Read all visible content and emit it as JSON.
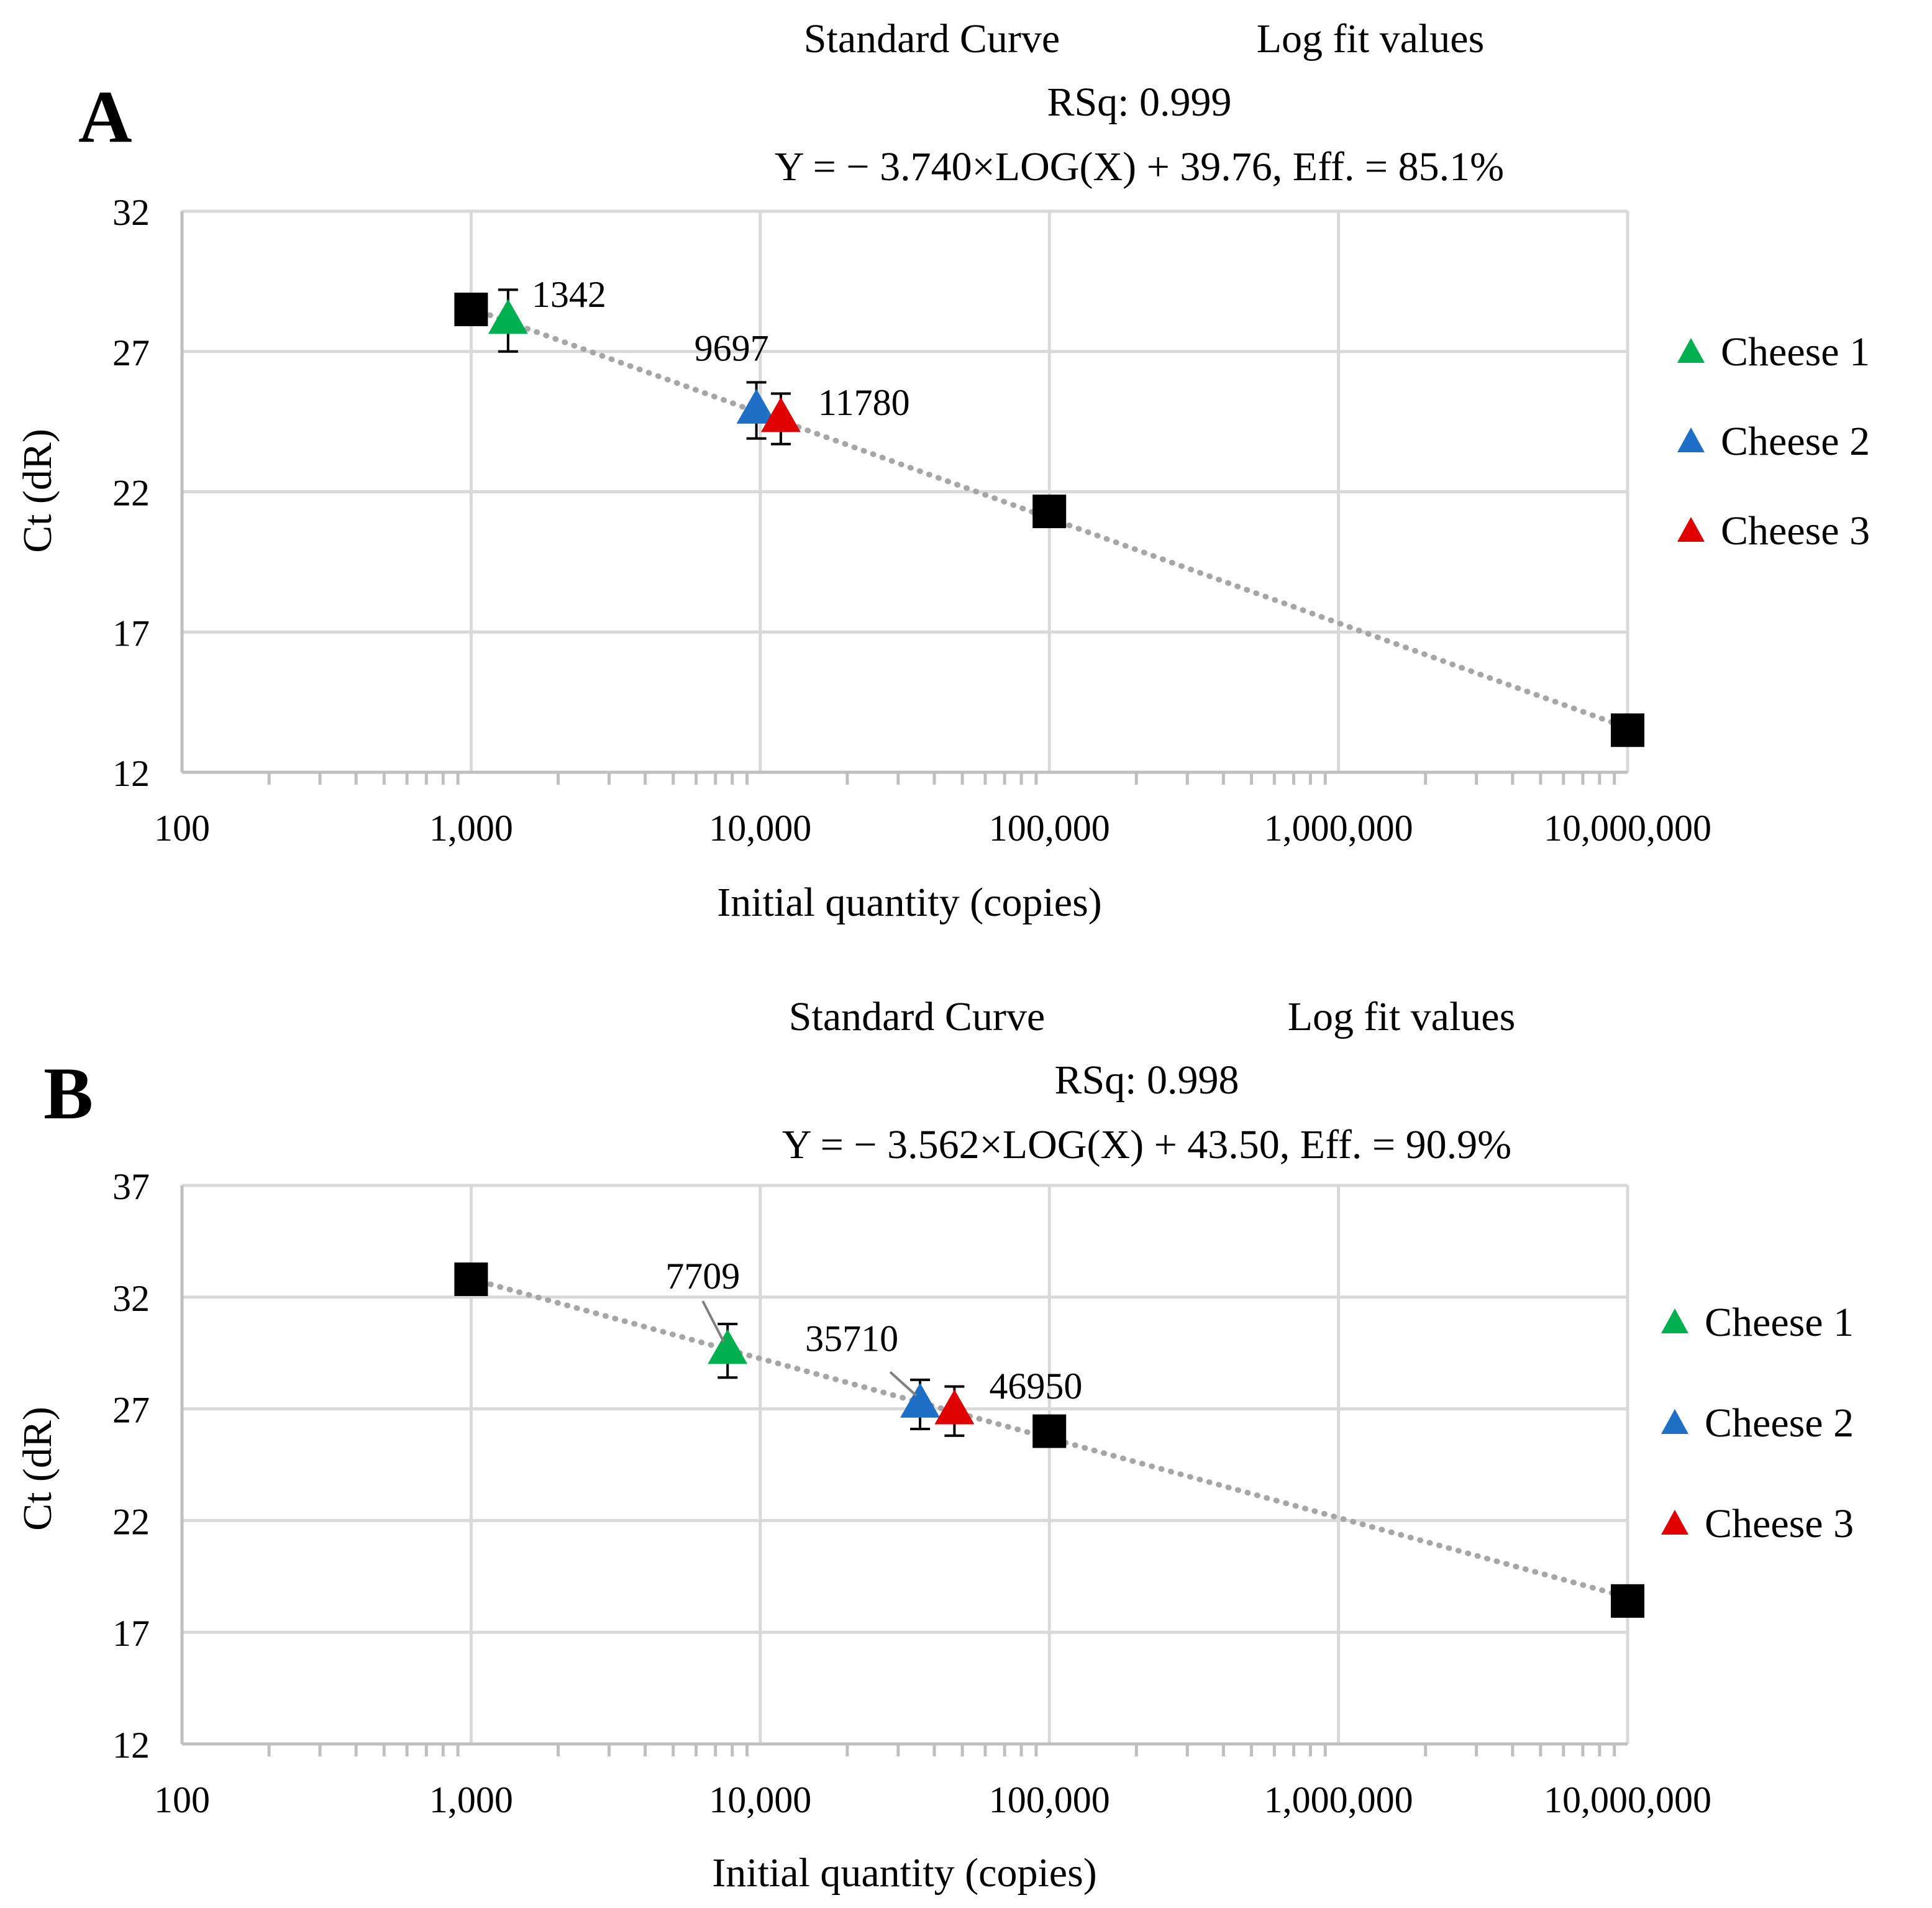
{
  "chart_data": [
    {
      "type": "scatter",
      "panel_label": "A",
      "header": {
        "standard_curve": "Standard Curve",
        "log_fit": "Log fit values",
        "rsq": "RSq: 0.999",
        "equation": "Y = − 3.740×LOG(X) + 39.76, Eff. = 85.1%"
      },
      "xlabel": "Initial quantity (copies)",
      "ylabel": "Ct (dR)",
      "x_scale": "log",
      "xlim": [
        100,
        10000000
      ],
      "x_ticks": [
        100,
        1000,
        10000,
        100000,
        1000000,
        10000000
      ],
      "x_tick_labels": [
        "100",
        "1,000",
        "10,000",
        "100,000",
        "1,000,000",
        "10,000,000"
      ],
      "ylim": [
        12,
        32
      ],
      "y_ticks": [
        12,
        17,
        22,
        27,
        32
      ],
      "y_tick_labels": [
        "12",
        "17",
        "22",
        "27",
        "32"
      ],
      "grid": true,
      "fit": {
        "slope": -3.74,
        "intercept": 39.76
      },
      "standards": [
        {
          "x": 1000,
          "y": 28.5
        },
        {
          "x": 100000,
          "y": 21.3
        },
        {
          "x": 10000000,
          "y": 13.5
        }
      ],
      "samples": [
        {
          "name": "Cheese 1",
          "color": "#00b050",
          "x": 1342,
          "y": 28.1,
          "err": 1.1,
          "label": "1342"
        },
        {
          "name": "Cheese 2",
          "color": "#1f6fc7",
          "x": 9697,
          "y": 24.9,
          "err": 1.0,
          "label": "9697"
        },
        {
          "name": "Cheese 3",
          "color": "#e00000",
          "x": 11780,
          "y": 24.6,
          "err": 0.9,
          "label": "11780"
        }
      ],
      "legend": [
        "Cheese 1",
        "Cheese 2",
        "Cheese 3"
      ],
      "legend_position": "right"
    },
    {
      "type": "scatter",
      "panel_label": "B",
      "header": {
        "standard_curve": "Standard Curve",
        "log_fit": "Log fit values",
        "rsq": "RSq: 0.998",
        "equation": "Y = − 3.562×LOG(X) + 43.50, Eff. = 90.9%"
      },
      "xlabel": "Initial quantity (copies)",
      "ylabel": "Ct (dR)",
      "x_scale": "log",
      "xlim": [
        100,
        10000000
      ],
      "x_ticks": [
        100,
        1000,
        10000,
        100000,
        1000000,
        10000000
      ],
      "x_tick_labels": [
        "100",
        "1,000",
        "10,000",
        "100,000",
        "1,000,000",
        "10,000,000"
      ],
      "ylim": [
        12,
        37
      ],
      "y_ticks": [
        12,
        17,
        22,
        27,
        32,
        37
      ],
      "y_tick_labels": [
        "12",
        "17",
        "22",
        "27",
        "32",
        "37"
      ],
      "grid": true,
      "fit": {
        "slope": -3.562,
        "intercept": 43.5
      },
      "standards": [
        {
          "x": 1000,
          "y": 32.8
        },
        {
          "x": 100000,
          "y": 26.0
        },
        {
          "x": 10000000,
          "y": 18.4
        }
      ],
      "samples": [
        {
          "name": "Cheese 1",
          "color": "#00b050",
          "x": 7709,
          "y": 29.6,
          "err": 1.2,
          "label": "7709"
        },
        {
          "name": "Cheese 2",
          "color": "#1f6fc7",
          "x": 35710,
          "y": 27.2,
          "err": 1.1,
          "label": "35710"
        },
        {
          "name": "Cheese 3",
          "color": "#e00000",
          "x": 46950,
          "y": 26.9,
          "err": 1.1,
          "label": "46950"
        }
      ],
      "legend": [
        "Cheese 1",
        "Cheese 2",
        "Cheese 3"
      ],
      "legend_position": "right"
    }
  ]
}
